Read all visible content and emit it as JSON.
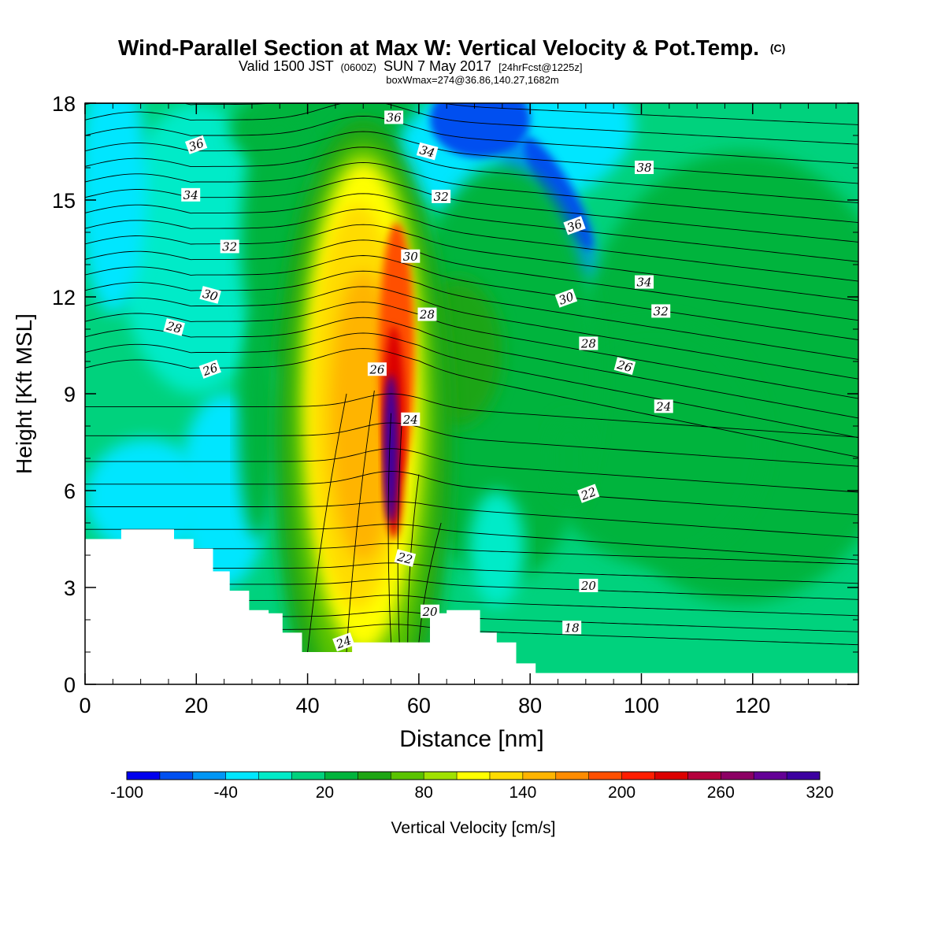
{
  "title": {
    "main": "Wind-Parallel Section at Max W: Vertical Velocity & Pot.Temp.",
    "copyright": "(C)",
    "valid_prefix": "Valid 1500 JST",
    "valid_utc": "(0600Z)",
    "valid_date": "SUN 7 May 2017",
    "forecast": "[24hrFcst@1225z]",
    "box_info": "boxWmax=274@36.86,140.27,1682m"
  },
  "chart_data": {
    "type": "heatmap",
    "xlabel": "Distance [nm]",
    "ylabel": "Height [Kft MSL]",
    "xlim": [
      0,
      139
    ],
    "ylim": [
      0,
      18
    ],
    "xticks": [
      0,
      20,
      40,
      60,
      80,
      100,
      120
    ],
    "yticks": [
      0,
      3,
      6,
      9,
      12,
      15,
      18
    ],
    "colorbar": {
      "label": "Vertical Velocity [cm/s]",
      "levels": [
        -100,
        -80,
        -60,
        -40,
        -20,
        0,
        20,
        40,
        60,
        80,
        100,
        120,
        140,
        160,
        180,
        200,
        220,
        240,
        260,
        280,
        300,
        320
      ],
      "tick_labels": [
        "-100",
        "-40",
        "20",
        "80",
        "140",
        "200",
        "260",
        "320"
      ],
      "tick_values": [
        -100,
        -40,
        20,
        80,
        140,
        200,
        260,
        320
      ],
      "colors": [
        "#0000ee",
        "#0050f0",
        "#0096f5",
        "#00e6ff",
        "#00ebc8",
        "#00d27d",
        "#00b43c",
        "#1ea514",
        "#5ac300",
        "#a0e100",
        "#ffff00",
        "#ffdc00",
        "#ffb400",
        "#ff8c00",
        "#ff5000",
        "#ff1e00",
        "#dc0000",
        "#b4003c",
        "#8c0064",
        "#640096",
        "#3c00a0"
      ],
      "position": "bottom"
    },
    "updraft": {
      "max_w_cms": 274,
      "core_distance_nm": 55,
      "core_height_kft": 8.5
    },
    "terrain_kft": [
      [
        0,
        4.5
      ],
      [
        6.5,
        4.5
      ],
      [
        6.5,
        4.8
      ],
      [
        16,
        4.8
      ],
      [
        16,
        4.5
      ],
      [
        19.5,
        4.5
      ],
      [
        19.5,
        4.2
      ],
      [
        23,
        4.2
      ],
      [
        23,
        3.5
      ],
      [
        26,
        3.5
      ],
      [
        26,
        2.9
      ],
      [
        29.5,
        2.9
      ],
      [
        29.5,
        2.3
      ],
      [
        33,
        2.3
      ],
      [
        33,
        2.2
      ],
      [
        35.5,
        2.2
      ],
      [
        35.5,
        1.6
      ],
      [
        39,
        1.6
      ],
      [
        39,
        1.0
      ],
      [
        48,
        1.0
      ],
      [
        48,
        1.3
      ],
      [
        62,
        1.3
      ],
      [
        62,
        2.2
      ],
      [
        65,
        2.2
      ],
      [
        65,
        2.3
      ],
      [
        71,
        2.3
      ],
      [
        71,
        1.6
      ],
      [
        74,
        1.6
      ],
      [
        74,
        1.3
      ],
      [
        77.5,
        1.3
      ],
      [
        77.5,
        0.65
      ],
      [
        81,
        0.65
      ],
      [
        81,
        0.35
      ],
      [
        139,
        0.35
      ]
    ],
    "isentrope_labels": [
      {
        "text": "36",
        "x": 55.5,
        "y": 17.55
      },
      {
        "text": "36",
        "x": 20,
        "y": 16.7
      },
      {
        "text": "34",
        "x": 61.5,
        "y": 16.5
      },
      {
        "text": "38",
        "x": 100.5,
        "y": 16.0
      },
      {
        "text": "34",
        "x": 19,
        "y": 15.15
      },
      {
        "text": "32",
        "x": 64,
        "y": 15.1
      },
      {
        "text": "36",
        "x": 88,
        "y": 14.2
      },
      {
        "text": "32",
        "x": 26,
        "y": 13.55
      },
      {
        "text": "30",
        "x": 58.5,
        "y": 13.25
      },
      {
        "text": "34",
        "x": 100.5,
        "y": 12.45
      },
      {
        "text": "30",
        "x": 22.5,
        "y": 12.05
      },
      {
        "text": "30",
        "x": 86.5,
        "y": 11.95
      },
      {
        "text": "28",
        "x": 61.5,
        "y": 11.45
      },
      {
        "text": "32",
        "x": 103.5,
        "y": 11.55
      },
      {
        "text": "28",
        "x": 16,
        "y": 11.05
      },
      {
        "text": "28",
        "x": 90.5,
        "y": 10.55
      },
      {
        "text": "26",
        "x": 22.5,
        "y": 9.75
      },
      {
        "text": "26",
        "x": 52.5,
        "y": 9.75
      },
      {
        "text": "26",
        "x": 97,
        "y": 9.85
      },
      {
        "text": "24",
        "x": 104,
        "y": 8.6
      },
      {
        "text": "24",
        "x": 58.5,
        "y": 8.2
      },
      {
        "text": "22",
        "x": 90.5,
        "y": 5.9
      },
      {
        "text": "22",
        "x": 57.5,
        "y": 3.9
      },
      {
        "text": "20",
        "x": 90.5,
        "y": 3.05
      },
      {
        "text": "20",
        "x": 62,
        "y": 2.25
      },
      {
        "text": "18",
        "x": 87.5,
        "y": 1.75
      },
      {
        "text": "24",
        "x": 46.5,
        "y": 1.3
      }
    ]
  }
}
